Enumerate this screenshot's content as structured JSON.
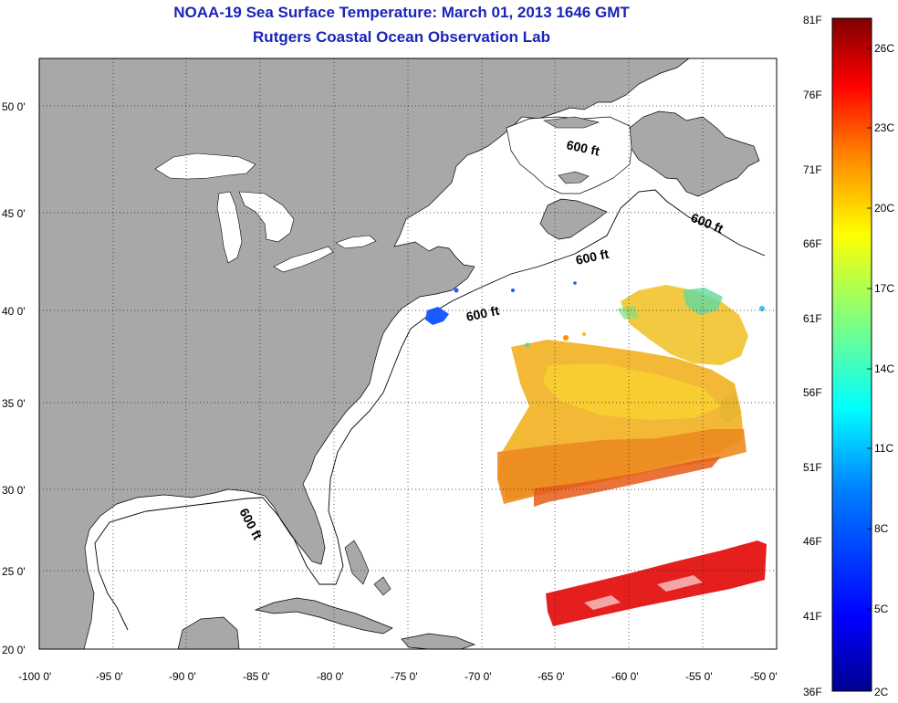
{
  "header": {
    "title": "NOAA-19 Sea Surface Temperature:  March 01, 2013 1646 GMT",
    "subtitle": "Rutgers Coastal Ocean Observation Lab"
  },
  "map": {
    "lon_range": [
      -100,
      -50
    ],
    "lat_range": [
      20,
      52.5
    ],
    "lon_ticks": [
      "-100 0'",
      "-95 0'",
      "-90 0'",
      "-85 0'",
      "-80 0'",
      "-75 0'",
      "-70 0'",
      "-65 0'",
      "-60 0'",
      "-55 0'",
      "-50 0'"
    ],
    "lat_ticks": [
      "20 0'",
      "25 0'",
      "30 0'",
      "35 0'",
      "40 0'",
      "45 0'",
      "50 0'"
    ],
    "contour_label": "600 ft",
    "contour_label_alt": "600\nft",
    "land_color": "#a8a8a8",
    "grid": "dotted"
  },
  "colorbar": {
    "fahrenheit_labels": [
      "81F",
      "76F",
      "71F",
      "66F",
      "61F",
      "56F",
      "51F",
      "46F",
      "41F",
      "36F"
    ],
    "celsius_labels": [
      "26C",
      "23C",
      "20C",
      "17C",
      "14C",
      "11C",
      "8C",
      "5C",
      "2C"
    ],
    "range_c": [
      2,
      27.2
    ],
    "colors": [
      "#00008f",
      "#0000ff",
      "#0080ff",
      "#00ffff",
      "#80ff80",
      "#ffff00",
      "#ff8000",
      "#ff0000",
      "#800000"
    ]
  }
}
